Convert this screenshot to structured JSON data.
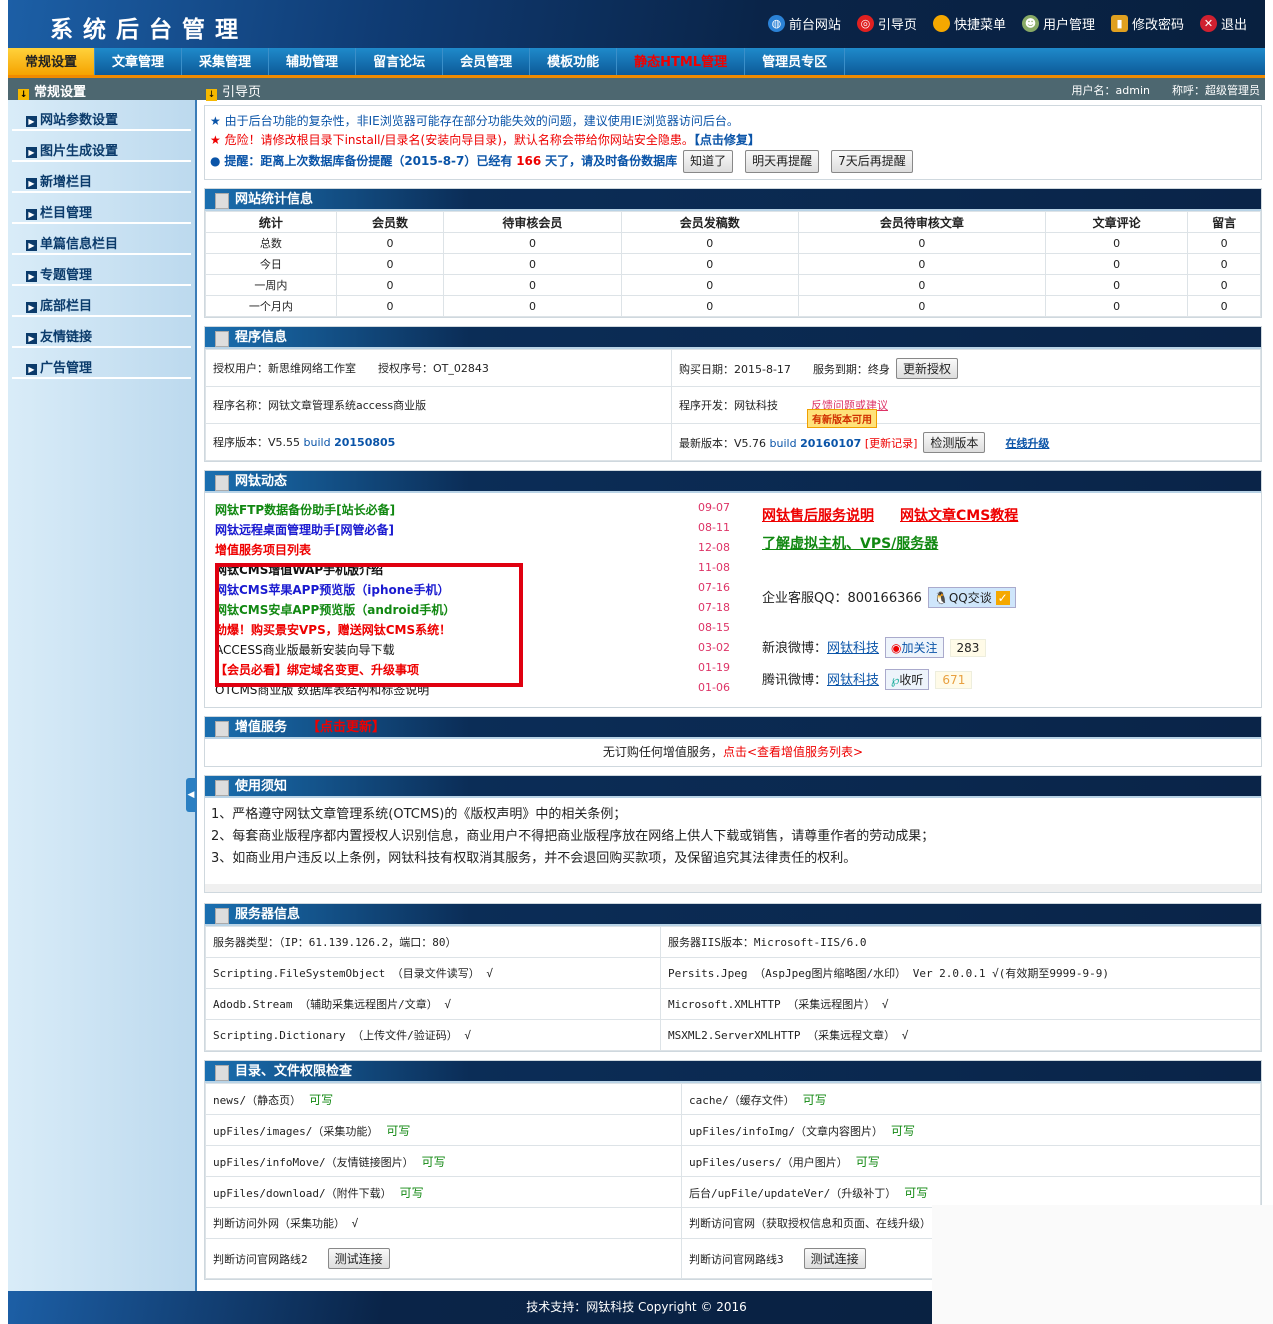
{
  "header": {
    "title": "系统后台管理",
    "links": [
      {
        "label": "前台网站",
        "icon": "globe-icon"
      },
      {
        "label": "引导页",
        "icon": "lifebuoy-icon"
      },
      {
        "label": "快捷菜单",
        "icon": "orb-icon"
      },
      {
        "label": "用户管理",
        "icon": "user-icon"
      },
      {
        "label": "修改密码",
        "icon": "lock-icon"
      },
      {
        "label": "退出",
        "icon": "close-icon"
      }
    ]
  },
  "nav": [
    "常规设置",
    "文章管理",
    "采集管理",
    "辅助管理",
    "留言论坛",
    "会员管理",
    "模板功能",
    "静态HTML管理",
    "管理员专区"
  ],
  "subbar": {
    "left": "常规设置",
    "page": "引导页",
    "user": "用户名：admin　　称呼：超级管理员"
  },
  "sidebar": [
    "网站参数设置",
    "图片生成设置",
    "新增栏目",
    "栏目管理",
    "单篇信息栏目",
    "专题管理",
    "底部栏目",
    "友情链接",
    "广告管理"
  ],
  "notices": {
    "n1": "由于后台功能的复杂性，非IE浏览器可能存在部分功能失效的问题，建议使用IE浏览器访问后台。",
    "n2": "危险！请修改根目录下install/目录名(安装向导目录)，默认名称会带给你网站安全隐患。",
    "n2_link": "【点击修复】",
    "n3a": "提醒：距离上次数据库备份提醒（2015-8-7）已经有",
    "n3_days": "166",
    "n3b": "天了，请及时备份数据库",
    "btn1": "知道了",
    "btn2": "明天再提醒",
    "btn3": "7天后再提醒"
  },
  "stats": {
    "title": "网站统计信息",
    "headers": [
      "统计",
      "会员数",
      "待审核会员",
      "会员发稿数",
      "会员待审核文章",
      "文章评论",
      "留言"
    ],
    "rows": [
      [
        "总数",
        "0",
        "0",
        "0",
        "0",
        "0",
        "0"
      ],
      [
        "今日",
        "0",
        "0",
        "0",
        "0",
        "0",
        "0"
      ],
      [
        "一周内",
        "0",
        "0",
        "0",
        "0",
        "0",
        "0"
      ],
      [
        "一个月内",
        "0",
        "0",
        "0",
        "0",
        "0",
        "0"
      ]
    ]
  },
  "program": {
    "title": "程序信息",
    "user": "授权用户：新思维网络工作室",
    "serial": "授权序号：OT_02843",
    "buy": "购买日期：2015-8-17",
    "expire": "服务到期：终身",
    "renew": "更新授权",
    "name": "程序名称：网钛文章管理系统access商业版",
    "dev": "程序开发：网钛科技",
    "feedback": "反馈问题或建议",
    "tip": "有新版本可用",
    "ver_label": "程序版本：V5.55",
    "ver_build": "build",
    "ver_num": "20150805",
    "latest_label": "最新版本：V5.76",
    "latest_build": "build",
    "latest_num": "20160107",
    "changelog": "[更新记录]",
    "check": "检测版本",
    "upgrade": "在线升级"
  },
  "news": {
    "title": "网钛动态",
    "items": [
      {
        "t": "网钛FTP数据备份助手[站长必备]",
        "d": "09-07",
        "c": "green"
      },
      {
        "t": "网钛远程桌面管理助手[网管必备]",
        "d": "08-11",
        "c": "blue"
      },
      {
        "t": "增值服务项目列表",
        "d": "12-08",
        "c": "red"
      },
      {
        "t": "网钛CMS增值WAP手机版介绍",
        "d": "11-08",
        "c": "black"
      },
      {
        "t": "网钛CMS苹果APP预览版（iphone手机）",
        "d": "07-16",
        "c": "blue"
      },
      {
        "t": "网钛CMS安卓APP预览版（android手机）",
        "d": "07-18",
        "c": "green"
      },
      {
        "t": "劲爆！购买景安VPS，赠送网钛CMS系统！",
        "d": "08-15",
        "c": "red"
      },
      {
        "t": "ACCESS商业版最新安装向导下载",
        "d": "03-02",
        "c": "plain"
      },
      {
        "t": "【会员必看】绑定域名变更、升级事项",
        "d": "01-19",
        "c": "red"
      },
      {
        "t": "OTCMS商业版 数据库表结构和标签说明",
        "d": "01-06",
        "c": "plain"
      }
    ],
    "links": [
      "网钛售后服务说明",
      "网钛文章CMS教程",
      "了解虚拟主机、VPS/服务器"
    ],
    "qq_label": "企业客服QQ：800166366",
    "qq_btn": "QQ交谈",
    "sina_label": "新浪微博：",
    "sina_link": "网钛科技",
    "sina_btn": "加关注",
    "sina_count": "283",
    "tx_label": "腾讯微博：",
    "tx_link": "网钛科技",
    "tx_btn": "收听",
    "tx_count": "671"
  },
  "vas": {
    "title": "增值服务",
    "update": "【点击更新】",
    "text": "无订购任何增值服务，",
    "link": "点击<查看增值服务列表>"
  },
  "usage": {
    "title": "使用须知",
    "items": [
      "1、严格遵守网钛文章管理系统(OTCMS)的《版权声明》中的相关条例；",
      "2、每套商业版程序都内置授权人识别信息，商业用户不得把商业版程序放在网络上供人下载或销售，请尊重作者的劳动成果；",
      "3、如商业用户违反以上条例，网钛科技有权取消其服务，并不会退回购买款项，及保留追究其法律责任的权利。"
    ]
  },
  "server": {
    "title": "服务器信息",
    "rows": [
      [
        "服务器类型：（IP：61.139.126.2，端口：80）",
        "服务器IIS版本：Microsoft-IIS/6.0"
      ],
      [
        "Scripting.FileSystemObject （目录文件读写） √",
        "Persits.Jpeg （AspJpeg图片缩略图/水印） Ver 2.0.0.1 √(有效期至9999-9-9)"
      ],
      [
        "Adodb.Stream （辅助采集远程图片/文章） √",
        "Microsoft.XMLHTTP （采集远程图片） √"
      ],
      [
        "Scripting.Dictionary （上传文件/验证码） √",
        "MSXML2.ServerXMLHTTP （采集远程文章） √"
      ]
    ]
  },
  "dirs": {
    "title": "目录、文件权限检查",
    "ok": "可写",
    "rows": [
      [
        "news/（静态页）",
        "cache/（缓存文件）"
      ],
      [
        "upFiles/images/（采集功能）",
        "upFiles/infoImg/（文章内容图片）"
      ],
      [
        "upFiles/infoMove/（友情链接图片）",
        "upFiles/users/（用户图片）"
      ],
      [
        "upFiles/download/（附件下载）",
        "后台/upFile/updateVer/（升级补丁）"
      ]
    ],
    "net1": "判断访问外网（采集功能） √",
    "net2": "判断访问官网（获取授权信息和页面、在线升级） √",
    "line2": "判断访问官网路线2",
    "line3": "判断访问官网路线3",
    "test": "测试连接"
  },
  "footer": "技术支持：网钛科技 Copyright © 2016",
  "colors": {
    "header": "#0a2448",
    "nav": "#1f8acb",
    "accent": "#f08a00",
    "danger": "#e00000",
    "ok": "#118811"
  }
}
